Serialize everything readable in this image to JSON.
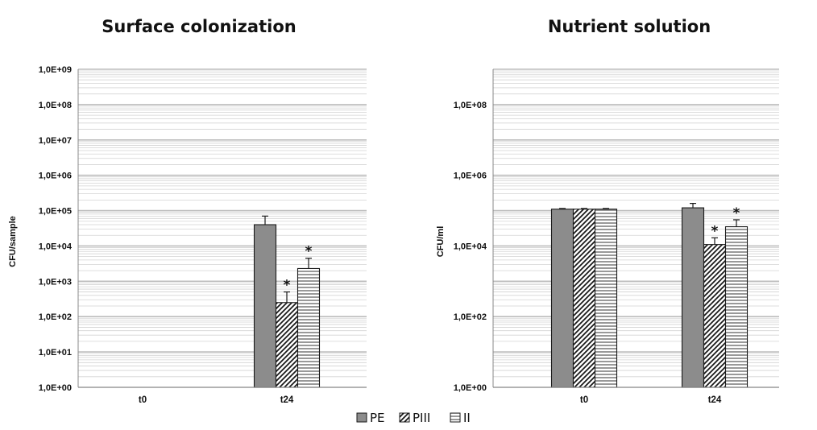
{
  "legend": [
    {
      "label": "PE",
      "pattern": "solid"
    },
    {
      "label": "PIII",
      "pattern": "diagonal"
    },
    {
      "label": "II",
      "pattern": "horizontal"
    }
  ],
  "colors": {
    "solid_fill": "#8c8c8c",
    "stroke": "#1a1a1a",
    "grid_major": "#bdbdbd",
    "grid_minor": "#d3d3d3"
  },
  "chart_data": [
    {
      "type": "bar",
      "title": "Surface colonization",
      "ylabel": "CFU/sample",
      "yscale": "log",
      "ylim": [
        1,
        1000000000
      ],
      "yticks": [
        "1,0E+00",
        "1,0E+01",
        "1,0E+02",
        "1,0E+03",
        "1,0E+04",
        "1,0E+05",
        "1,0E+06",
        "1,0E+07",
        "1,0E+08",
        "1,0E+09"
      ],
      "categories": [
        "t0",
        "t24"
      ],
      "series": [
        {
          "name": "PE",
          "values": [
            null,
            40000
          ],
          "errors": [
            null,
            30000
          ],
          "significant": [
            false,
            false
          ]
        },
        {
          "name": "PIII",
          "values": [
            null,
            250
          ],
          "errors": [
            null,
            250
          ],
          "significant": [
            false,
            true
          ]
        },
        {
          "name": "II",
          "values": [
            null,
            2300
          ],
          "errors": [
            null,
            2200
          ],
          "significant": [
            false,
            true
          ]
        }
      ],
      "annotation": "*",
      "grid": true
    },
    {
      "type": "bar",
      "title": "Nutrient solution",
      "ylabel": "CFU/ml",
      "yscale": "log",
      "ylim": [
        1,
        1000000000
      ],
      "yticks": [
        "1,0E+00",
        "1,0E+02",
        "1,0E+04",
        "1,0E+06",
        "1,0E+08"
      ],
      "categories": [
        "t0",
        "t24"
      ],
      "series": [
        {
          "name": "PE",
          "values": [
            110000,
            120000
          ],
          "errors": [
            5000,
            40000
          ],
          "significant": [
            false,
            false
          ]
        },
        {
          "name": "PIII",
          "values": [
            110000,
            11000
          ],
          "errors": [
            5000,
            6000
          ],
          "significant": [
            false,
            true
          ]
        },
        {
          "name": "II",
          "values": [
            110000,
            35000
          ],
          "errors": [
            5000,
            20000
          ],
          "significant": [
            false,
            true
          ]
        }
      ],
      "annotation": "*",
      "grid": true
    }
  ]
}
